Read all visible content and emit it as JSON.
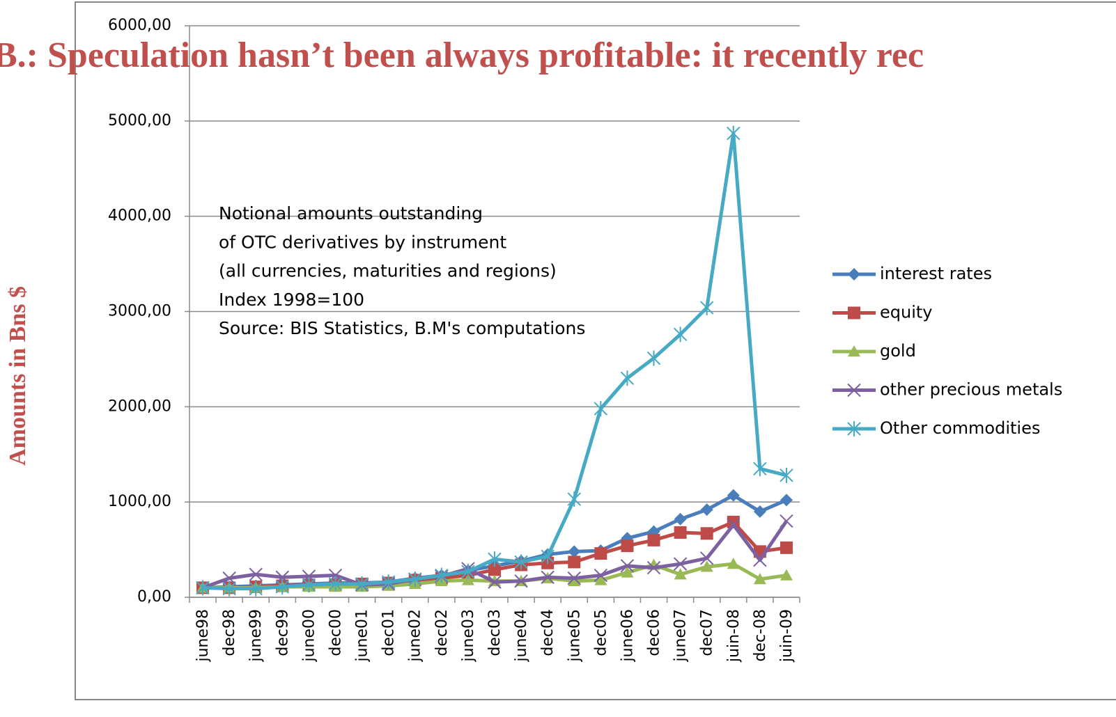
{
  "chart_data": {
    "type": "line",
    "title": "B.: Speculation hasn’t been always profitable: it recently rec",
    "y_label": "Amounts in Bns $",
    "annotation": [
      "Notional amounts outstanding",
      "of OTC derivatives by instrument",
      "(all currencies, maturities and regions)",
      "Index 1998=100",
      "Source: BIS  Statistics, B.M's  computations"
    ],
    "categories": [
      "june98",
      "dec98",
      "june99",
      "dec99",
      "june00",
      "dec00",
      "june01",
      "dec01",
      "june02",
      "dec02",
      "june03",
      "dec03",
      "june04",
      "dec04",
      "june05",
      "dec05",
      "june06",
      "dec06",
      "june07",
      "dec07",
      "juin-08",
      "dec-08",
      "juin-09"
    ],
    "ylim": [
      0,
      6000
    ],
    "yticks": [
      {
        "value": 0,
        "label": "0,00"
      },
      {
        "value": 1000,
        "label": "1000,00"
      },
      {
        "value": 2000,
        "label": "2000,00"
      },
      {
        "value": 3000,
        "label": "3000,00"
      },
      {
        "value": 4000,
        "label": "4000,00"
      },
      {
        "value": 5000,
        "label": "5000,00"
      },
      {
        "value": 6000,
        "label": "6000,00"
      }
    ],
    "grid": true,
    "legend": "right",
    "series": [
      {
        "name": "interest rates",
        "color": "#4a7ebb",
        "marker": "diamond",
        "values": [
          100,
          110,
          120,
          130,
          140,
          150,
          150,
          160,
          200,
          230,
          280,
          330,
          380,
          450,
          480,
          490,
          620,
          690,
          820,
          920,
          1070,
          900,
          1020
        ]
      },
      {
        "name": "equity",
        "color": "#be4b48",
        "marker": "square",
        "values": [
          100,
          100,
          110,
          120,
          130,
          130,
          140,
          150,
          180,
          200,
          230,
          290,
          340,
          360,
          370,
          460,
          540,
          600,
          680,
          670,
          790,
          480,
          520
        ]
      },
      {
        "name": "gold",
        "color": "#98b954",
        "marker": "triangle",
        "values": [
          100,
          100,
          100,
          110,
          110,
          110,
          110,
          120,
          140,
          170,
          180,
          170,
          170,
          200,
          170,
          180,
          260,
          340,
          240,
          320,
          350,
          190,
          230
        ]
      },
      {
        "name": "other precious metals",
        "color": "#7d60a0",
        "marker": "x",
        "values": [
          100,
          200,
          240,
          210,
          220,
          230,
          130,
          140,
          190,
          220,
          300,
          160,
          170,
          210,
          200,
          230,
          330,
          310,
          350,
          410,
          760,
          390,
          800
        ]
      },
      {
        "name": "Other commodities",
        "color": "#46aac5",
        "marker": "star",
        "values": [
          100,
          90,
          90,
          110,
          130,
          140,
          140,
          160,
          190,
          230,
          270,
          400,
          370,
          430,
          1030,
          1980,
          2300,
          2510,
          2760,
          3040,
          4870,
          1350,
          1280
        ]
      }
    ]
  }
}
